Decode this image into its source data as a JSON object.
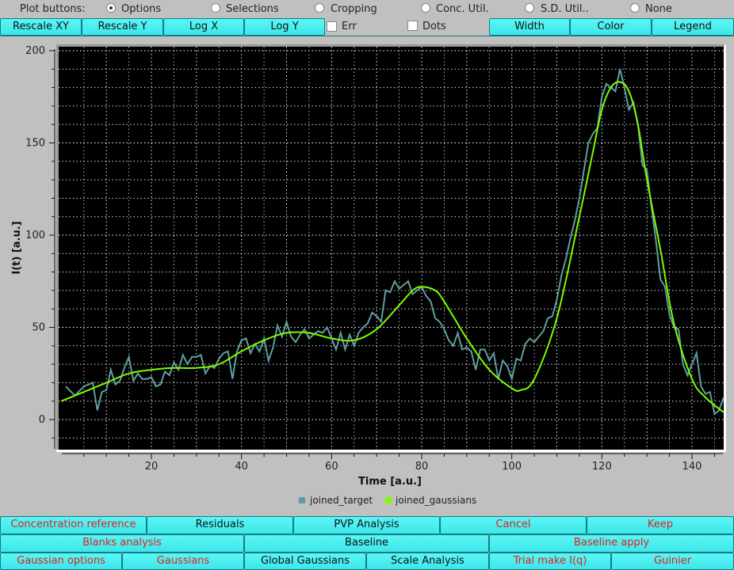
{
  "plot_buttons": {
    "label": "Plot buttons:",
    "options": [
      {
        "label": "Options",
        "selected": true
      },
      {
        "label": "Selections",
        "selected": false
      },
      {
        "label": "Cropping",
        "selected": false
      },
      {
        "label": "Conc. Util.",
        "selected": false
      },
      {
        "label": "S.D. Util..",
        "selected": false
      },
      {
        "label": "None",
        "selected": false
      }
    ]
  },
  "toolbar": {
    "rescale_xy": "Rescale XY",
    "rescale_y": "Rescale Y",
    "log_x": "Log X",
    "log_y": "Log Y",
    "err": "Err",
    "dots": "Dots",
    "width": "Width",
    "color": "Color",
    "legend": "Legend"
  },
  "colors": {
    "background": "#c0c0c0",
    "plot_bg": "#000000",
    "target": "#5f9ea0",
    "gaussians": "#7cfc00",
    "button": "#4df0f2",
    "button_border": "#0f7f82",
    "red_text": "#e02020"
  },
  "chart_data": {
    "type": "line",
    "title": "",
    "xlabel": "Time [a.u.]",
    "ylabel": "I(t) [a.u.]",
    "xlim": [
      -1,
      147
    ],
    "ylim": [
      -15,
      203
    ],
    "x_ticks": [
      20,
      40,
      60,
      80,
      100,
      120,
      140
    ],
    "y_ticks": [
      0,
      50,
      100,
      150,
      200
    ],
    "grid": true,
    "legend_position": "bottom",
    "legend": [
      "joined_target",
      "joined_gaussians"
    ],
    "series": [
      {
        "name": "joined_target",
        "color": "#5f9ea0",
        "x": [
          1,
          3,
          5,
          7,
          8,
          9,
          10,
          11,
          12,
          13,
          14,
          15,
          16,
          17,
          18,
          19,
          20,
          21,
          22,
          23,
          24,
          25,
          26,
          27,
          28,
          29,
          30,
          31,
          32,
          33,
          34,
          35,
          36,
          37,
          38,
          39,
          40,
          41,
          42,
          43,
          44,
          45,
          46,
          47,
          48,
          49,
          50,
          51,
          52,
          53,
          54,
          55,
          56,
          57,
          58,
          59,
          60,
          61,
          62,
          63,
          64,
          65,
          66,
          67,
          68,
          69,
          70,
          71,
          72,
          73,
          74,
          75,
          76,
          77,
          78,
          79,
          80,
          81,
          82,
          83,
          84,
          85,
          86,
          87,
          88,
          89,
          90,
          91,
          92,
          93,
          94,
          95,
          96,
          97,
          98,
          99,
          100,
          101,
          102,
          103,
          104,
          105,
          106,
          107,
          108,
          109,
          110,
          111,
          112,
          113,
          114,
          115,
          116,
          117,
          118,
          119,
          120,
          121,
          122,
          123,
          124,
          125,
          126,
          127,
          128,
          129,
          130,
          131,
          132,
          133,
          134,
          135,
          136,
          137,
          138,
          139,
          140,
          141,
          142,
          143,
          144,
          145,
          146,
          147
        ],
        "values": [
          18,
          13,
          18,
          20,
          5,
          15,
          16,
          27,
          19,
          21,
          28,
          34,
          21,
          25,
          22,
          22,
          23,
          18,
          19,
          26,
          24,
          31,
          27,
          35,
          30,
          34,
          34,
          35,
          25,
          29,
          28,
          33,
          36,
          37,
          22,
          37,
          43,
          44,
          36,
          41,
          37,
          44,
          32,
          39,
          51,
          45,
          53,
          45,
          42,
          46,
          49,
          44,
          46,
          48,
          47,
          50,
          44,
          38,
          47,
          38,
          46,
          40,
          47,
          50,
          52,
          58,
          56,
          53,
          70,
          69,
          75,
          71,
          73,
          75,
          68,
          70,
          72,
          67,
          64,
          55,
          53,
          49,
          43,
          40,
          47,
          38,
          39,
          37,
          27,
          38,
          38,
          32,
          36,
          22,
          32,
          29,
          22,
          33,
          32,
          41,
          44,
          42,
          45,
          48,
          55,
          56,
          65,
          78,
          87,
          98,
          108,
          120,
          135,
          150,
          155,
          158,
          175,
          182,
          180,
          178,
          190,
          180,
          168,
          172,
          160,
          138,
          135,
          115,
          97,
          76,
          72,
          57,
          50,
          49,
          30,
          24,
          30,
          36,
          18,
          14,
          15,
          3,
          5,
          12
        ]
      },
      {
        "name": "joined_gaussians",
        "color": "#7cfc00",
        "x": [
          0,
          5,
          10,
          15,
          20,
          25,
          30,
          35,
          40,
          45,
          50,
          55,
          60,
          65,
          70,
          75,
          78,
          80,
          83,
          85,
          90,
          95,
          100,
          102,
          105,
          110,
          115,
          118,
          120,
          122,
          124,
          126,
          128,
          130,
          133,
          136,
          140,
          143,
          147
        ],
        "values": [
          10,
          15,
          20,
          25,
          27,
          28,
          28,
          30,
          37,
          43,
          47,
          47,
          44,
          43,
          49,
          62,
          70,
          72,
          70,
          64,
          44,
          27,
          17,
          16,
          22,
          55,
          110,
          145,
          168,
          180,
          183,
          178,
          160,
          130,
          92,
          52,
          22,
          12,
          4
        ]
      }
    ]
  },
  "bottom_buttons": {
    "row1": [
      {
        "label": "Concentration reference",
        "red": true
      },
      {
        "label": "Residuals",
        "red": false
      },
      {
        "label": "PVP Analysis",
        "red": false
      },
      {
        "label": "Cancel",
        "red": true
      },
      {
        "label": "Keep",
        "red": true
      }
    ],
    "row2": [
      {
        "label": "Blanks analysis",
        "red": true
      },
      {
        "label": "Baseline",
        "red": false
      },
      {
        "label": "Baseline apply",
        "red": true
      }
    ],
    "row3": [
      {
        "label": "Gaussian options",
        "red": true
      },
      {
        "label": "Gaussians",
        "red": true
      },
      {
        "label": "Global Gaussians",
        "red": false
      },
      {
        "label": "Scale Analysis",
        "red": false
      },
      {
        "label": "Trial make I(q)",
        "red": true
      },
      {
        "label": "Guinier",
        "red": true
      }
    ]
  }
}
